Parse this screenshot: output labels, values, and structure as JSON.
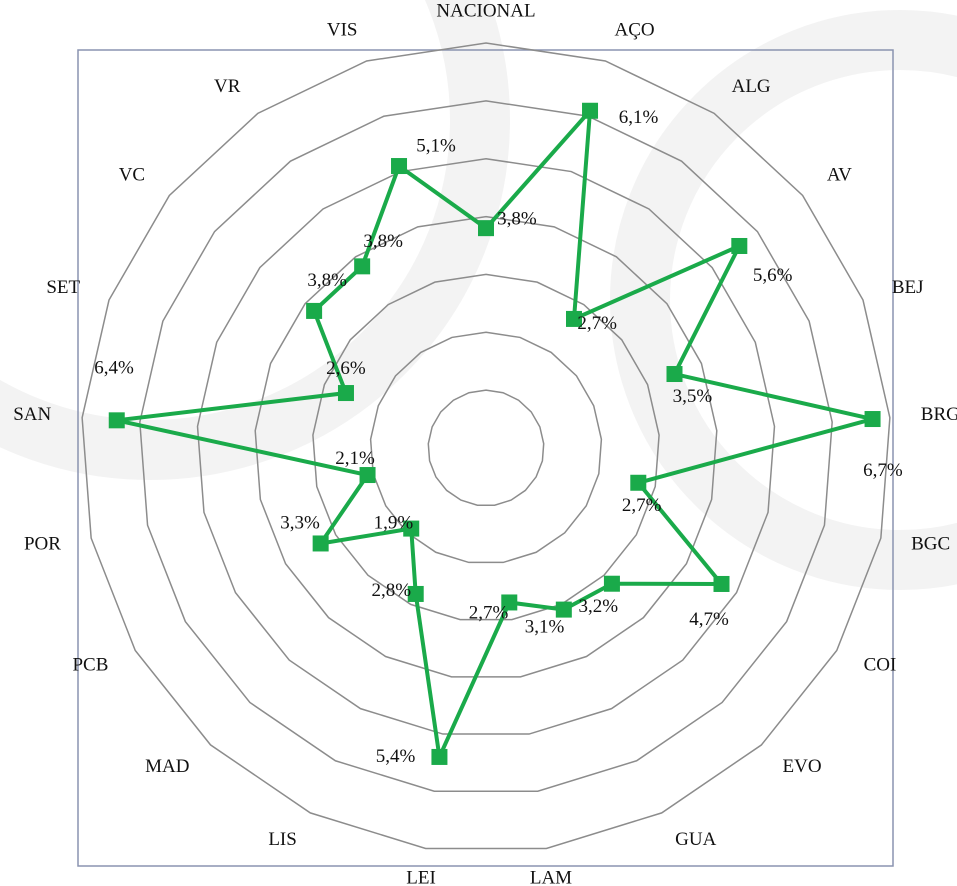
{
  "chart_data": {
    "type": "radar",
    "categories": [
      "NACIONAL",
      "AÇO",
      "ALG",
      "AV",
      "BEJ",
      "BRG",
      "BGC",
      "COI",
      "EVO",
      "GUA",
      "LAM",
      "LEI",
      "LIS",
      "MAD",
      "PCB",
      "POR",
      "SAN",
      "SET",
      "VC",
      "VR",
      "VIS"
    ],
    "values": [
      3.8,
      6.1,
      2.7,
      5.6,
      3.5,
      6.7,
      2.7,
      4.7,
      3.2,
      3.1,
      2.7,
      5.4,
      2.8,
      1.9,
      3.3,
      2.1,
      6.4,
      2.6,
      3.8,
      3.8,
      5.1
    ],
    "value_labels": [
      "3,8%",
      "6,1%",
      "2,7%",
      "5,6%",
      "3,5%",
      "6,7%",
      "2,7%",
      "4,7%",
      "3,2%",
      "3,1%",
      "2,7%",
      "5,4%",
      "2,8%",
      "1,9%",
      "3,3%",
      "2,1%",
      "6,4%",
      "2,6%",
      "3,8%",
      "3,8%",
      "5,1%"
    ],
    "color": "#1aaa4a",
    "ylim": [
      0,
      7
    ],
    "yticks": [
      1,
      2,
      3,
      4,
      5,
      6,
      7
    ],
    "grid": true
  }
}
